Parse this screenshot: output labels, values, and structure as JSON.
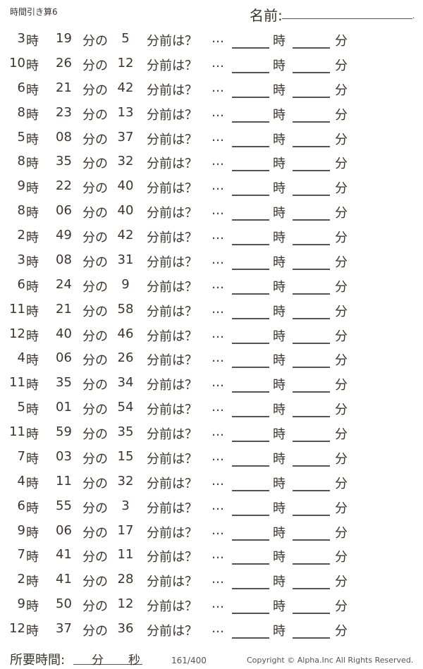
{
  "title": "時間引き算6",
  "name_label": "名前:",
  "unit_hour": "時",
  "unit_min_of": "分の",
  "suffix": "分前は？",
  "ellipsis": "…",
  "answer_hour_unit": "時",
  "answer_min_unit": "分",
  "problems": [
    {
      "h": "3",
      "m": "19",
      "d": "5"
    },
    {
      "h": "10",
      "m": "26",
      "d": "12"
    },
    {
      "h": "6",
      "m": "21",
      "d": "42"
    },
    {
      "h": "8",
      "m": "23",
      "d": "13"
    },
    {
      "h": "5",
      "m": "08",
      "d": "37"
    },
    {
      "h": "8",
      "m": "35",
      "d": "32"
    },
    {
      "h": "9",
      "m": "22",
      "d": "40"
    },
    {
      "h": "8",
      "m": "06",
      "d": "40"
    },
    {
      "h": "2",
      "m": "49",
      "d": "42"
    },
    {
      "h": "3",
      "m": "08",
      "d": "31"
    },
    {
      "h": "6",
      "m": "24",
      "d": "9"
    },
    {
      "h": "11",
      "m": "21",
      "d": "58"
    },
    {
      "h": "12",
      "m": "40",
      "d": "46"
    },
    {
      "h": "4",
      "m": "06",
      "d": "26"
    },
    {
      "h": "11",
      "m": "35",
      "d": "34"
    },
    {
      "h": "5",
      "m": "01",
      "d": "54"
    },
    {
      "h": "11",
      "m": "59",
      "d": "35"
    },
    {
      "h": "7",
      "m": "03",
      "d": "15"
    },
    {
      "h": "4",
      "m": "11",
      "d": "32"
    },
    {
      "h": "6",
      "m": "55",
      "d": "3"
    },
    {
      "h": "9",
      "m": "06",
      "d": "17"
    },
    {
      "h": "7",
      "m": "41",
      "d": "11"
    },
    {
      "h": "2",
      "m": "41",
      "d": "28"
    },
    {
      "h": "9",
      "m": "50",
      "d": "12"
    },
    {
      "h": "12",
      "m": "37",
      "d": "36"
    }
  ],
  "footer": {
    "time_label": "所要時間:",
    "min": "分",
    "sec": "秒",
    "page": "161/400",
    "copyright": "Copyright ©  Alpha.Inc All Rights Reserved."
  }
}
